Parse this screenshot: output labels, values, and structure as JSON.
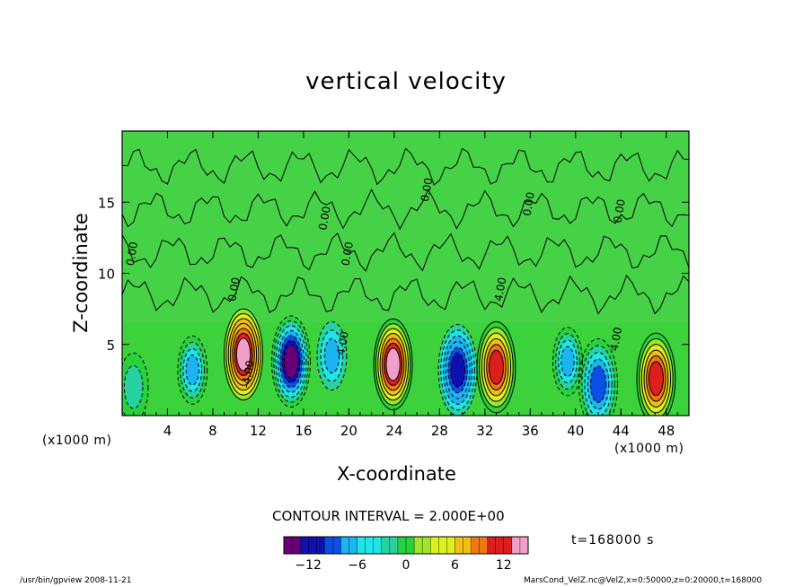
{
  "chart_data": {
    "type": "heatmap",
    "title": "vertical velocity",
    "xlabel": "X-coordinate",
    "ylabel": "Z-coordinate",
    "x_unit": "(x1000 m)",
    "y_unit": "(x1000 m)",
    "xlim": [
      0,
      50
    ],
    "ylim": [
      0,
      20
    ],
    "x_ticks": [
      "4",
      "8",
      "12",
      "16",
      "20",
      "24",
      "28",
      "32",
      "36",
      "40",
      "44",
      "48"
    ],
    "y_ticks": [
      "5",
      "10",
      "15"
    ],
    "contour_labels": [
      "0.00",
      "0.00",
      "0.00",
      "0.00",
      "0.00",
      "0.00",
      "0.00",
      "4.00",
      "4.00",
      "4.00",
      "-4.00"
    ],
    "contour_interval": "CONTOUR INTERVAL = 2.000E+00",
    "colorbar": {
      "ticks": [
        "−12",
        "−6",
        "0",
        "6",
        "12"
      ],
      "range": [
        -15,
        15
      ],
      "colors": [
        "#6a0078",
        "#1010b0",
        "#0a50e6",
        "#1cb4f0",
        "#1ee6e6",
        "#28d2a0",
        "#28d23c",
        "#9be628",
        "#dcf01e",
        "#f0be14",
        "#f07814",
        "#dc1e1e",
        "#f0a0c8"
      ]
    },
    "extrema": [
      {
        "x": 10.7,
        "z": 4.3,
        "w": 14
      },
      {
        "x": 14.9,
        "z": 3.8,
        "w": -13
      },
      {
        "x": 18.5,
        "z": 4.2,
        "w": -6
      },
      {
        "x": 23.9,
        "z": 3.6,
        "w": 13
      },
      {
        "x": 29.6,
        "z": 3.2,
        "w": -12
      },
      {
        "x": 33.0,
        "z": 3.4,
        "w": 11
      },
      {
        "x": 39.3,
        "z": 3.8,
        "w": -7
      },
      {
        "x": 42.0,
        "z": 2.2,
        "w": -9
      },
      {
        "x": 47.1,
        "z": 2.6,
        "w": 11
      },
      {
        "x": 6.2,
        "z": 3.2,
        "w": -7
      },
      {
        "x": 1.0,
        "z": 2.0,
        "w": -3
      }
    ]
  },
  "time_label": "t=168000 s",
  "footer": {
    "left": "/usr/bin/gpview   2008-11-21",
    "right": "MarsCond_VelZ.nc@VelZ,x=0:50000,z=0:20000,t=168000"
  }
}
